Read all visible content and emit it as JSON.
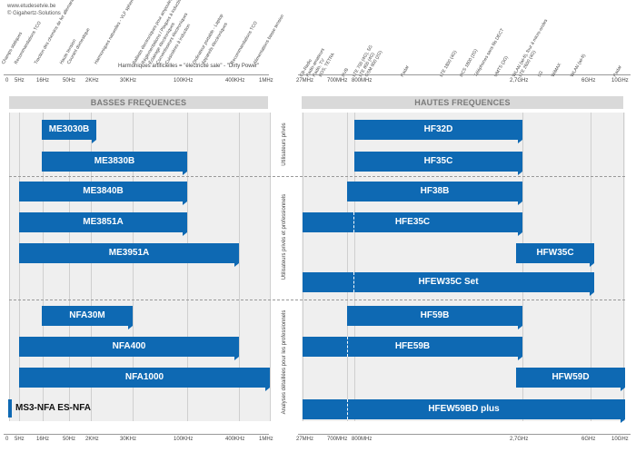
{
  "header": {
    "site": "www.etudesetvie.be",
    "copyright": "© Gigahertz-Solutions"
  },
  "lf_sources": [
    "Champs statiques",
    "Recommandations TCO",
    "Traction des chemins de fer allemands et suisses",
    "Haute tension",
    "Courant domestique",
    "Harmoniques naturelles - VLF spherics",
    "Ballasts électroniques pour ampoules LED et ampoules fluorescentes",
    "Réglementations / Plaques à induction",
    "Éclairage électroniques",
    "Convertisseurs électroniques",
    "Cuisinières à induction",
    "Ordinateur portable - Laptop",
    "Appareils électroniques",
    "Recommandations TCO",
    "Alimentations basse tension"
  ],
  "lf_note": "Harmoniques artificielles = \"électricité sale\" - \"Dirty Power\"",
  "hf_sources": [
    "CB-Radio",
    "Radio-amateurs",
    "Radio, TV",
    "BOS, TETRA",
    "DVB",
    "LTE 700 (4G), 5G",
    "LTE 800 (4G)",
    "GSM 900 (2G)",
    "Radar",
    "LTE 1800 (4G)",
    "DCS 1800 (2G)",
    "Téléphones sans fils DECT",
    "UMTS (3G)",
    "WLAN (wi-fi), four à micro-ondes",
    "LTE 2600 (4G)",
    "5G",
    "WiMAX",
    "WLAN (wi-fi)",
    "Radar"
  ],
  "lf_ticks": [
    "0",
    "5Hz",
    "16Hz",
    "50Hz",
    "2KHz",
    "30KHz",
    "100KHz",
    "400KHz",
    "1MHz"
  ],
  "hf_ticks": [
    "27MHz",
    "700MHz",
    "800MHz",
    "2,7GHz",
    "6GHz",
    "10GHz"
  ],
  "sections": {
    "lf": "BASSES FREQUENCES",
    "hf": "HAUTES FREQUENCES"
  },
  "categories": [
    "Utilisateurs privés",
    "Utilisateurs privés et professionnels",
    "Analyses détaillées pour les professionnels"
  ],
  "lf_bars": [
    {
      "label": "ME3030B"
    },
    {
      "label": "ME3830B"
    },
    {
      "label": "ME3840B"
    },
    {
      "label": "ME3851A"
    },
    {
      "label": "ME3951A"
    },
    {
      "label": "NFA30M"
    },
    {
      "label": "NFA400"
    },
    {
      "label": "NFA1000"
    }
  ],
  "lf_plain": "MS3-NFA  ES-NFA",
  "hf_bars": [
    {
      "label": "HF32D"
    },
    {
      "label": "HF35C"
    },
    {
      "label": "HF38B"
    },
    {
      "label": "HFE35C"
    },
    {
      "label": "HFW35C"
    },
    {
      "label": "HFEW35C Set"
    },
    {
      "label": "HF59B"
    },
    {
      "label": "HFE59B"
    },
    {
      "label": "HFW59D"
    },
    {
      "label": "HFEW59BD plus"
    }
  ],
  "colors": {
    "bar": "#0e69b3",
    "panel": "#efefef",
    "header": "#d9d9d9"
  }
}
